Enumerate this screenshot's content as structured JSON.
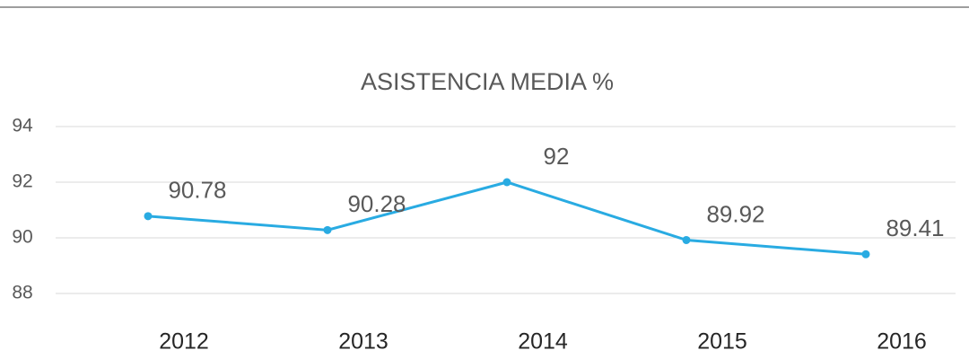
{
  "chart_data": {
    "type": "line",
    "title": "ASISTENCIA MEDIA %",
    "categories": [
      "2012",
      "2013",
      "2014",
      "2015",
      "2016"
    ],
    "values": [
      90.78,
      90.28,
      92,
      89.92,
      89.41
    ],
    "color": "#29abe2",
    "ylim": [
      88,
      94
    ],
    "yticks": [
      88,
      90,
      92,
      94
    ],
    "grid": true
  }
}
